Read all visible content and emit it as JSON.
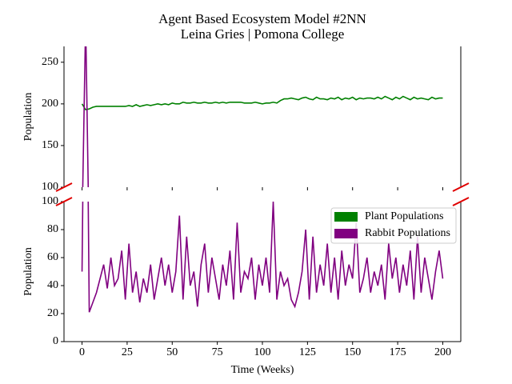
{
  "chart_data": {
    "type": "line",
    "title": "Agent Based Ecosystem Model #2NN",
    "subtitle": "Leina Gries | Pomona College",
    "x_label": "Time (Weeks)",
    "y_label": "Population",
    "xlim": [
      -10,
      210
    ],
    "xticks": [
      0,
      25,
      50,
      75,
      100,
      125,
      150,
      175,
      200
    ],
    "broken_axis": true,
    "panels": [
      {
        "ylim": [
          100,
          269
        ],
        "yticks": [
          100,
          150,
          200,
          250
        ]
      },
      {
        "ylim": [
          0,
          100
        ],
        "yticks": [
          0,
          20,
          40,
          60,
          80,
          100
        ]
      }
    ],
    "legend": "upper right",
    "x": [
      0,
      2,
      4,
      6,
      8,
      10,
      12,
      14,
      16,
      18,
      20,
      22,
      24,
      26,
      28,
      30,
      32,
      34,
      36,
      38,
      40,
      42,
      44,
      46,
      48,
      50,
      52,
      54,
      56,
      58,
      60,
      62,
      64,
      66,
      68,
      70,
      72,
      74,
      76,
      78,
      80,
      82,
      84,
      86,
      88,
      90,
      92,
      94,
      96,
      98,
      100,
      102,
      104,
      106,
      108,
      110,
      112,
      114,
      116,
      118,
      120,
      122,
      124,
      126,
      128,
      130,
      132,
      134,
      136,
      138,
      140,
      142,
      144,
      146,
      148,
      150,
      152,
      154,
      156,
      158,
      160,
      162,
      164,
      166,
      168,
      170,
      172,
      174,
      176,
      178,
      180,
      182,
      184,
      186,
      188,
      190,
      192,
      194,
      196,
      198,
      200
    ],
    "series": [
      {
        "name": "Plant Populations",
        "color": "#008000",
        "values": [
          200,
          193,
          194,
          196,
          197,
          197,
          197,
          197,
          197,
          197,
          197,
          197,
          197,
          198,
          197,
          199,
          197,
          198,
          199,
          198,
          199,
          200,
          199,
          200,
          199,
          201,
          200,
          200,
          202,
          201,
          201,
          202,
          201,
          201,
          202,
          201,
          201,
          202,
          201,
          202,
          201,
          202,
          202,
          202,
          202,
          201,
          201,
          201,
          202,
          201,
          200,
          201,
          201,
          202,
          201,
          204,
          206,
          206,
          207,
          206,
          205,
          207,
          208,
          206,
          205,
          208,
          206,
          206,
          205,
          207,
          206,
          208,
          205,
          207,
          206,
          208,
          205,
          207,
          206,
          207,
          207,
          206,
          208,
          206,
          209,
          207,
          205,
          208,
          206,
          209,
          207,
          205,
          208,
          206,
          207,
          206,
          205,
          208,
          206,
          207,
          207
        ]
      },
      {
        "name": "Rabbit Populations",
        "color": "#800080",
        "values": [
          50,
          300,
          21,
          28,
          35,
          45,
          55,
          38,
          60,
          40,
          45,
          65,
          30,
          70,
          35,
          50,
          28,
          45,
          35,
          55,
          30,
          45,
          60,
          40,
          55,
          35,
          50,
          90,
          30,
          75,
          40,
          50,
          25,
          55,
          70,
          35,
          60,
          45,
          30,
          55,
          40,
          65,
          30,
          85,
          35,
          50,
          45,
          60,
          30,
          55,
          40,
          60,
          35,
          100,
          30,
          50,
          40,
          45,
          30,
          25,
          35,
          50,
          80,
          30,
          75,
          35,
          55,
          40,
          70,
          35,
          60,
          30,
          65,
          40,
          55,
          45,
          85,
          35,
          45,
          60,
          35,
          50,
          40,
          55,
          30,
          70,
          45,
          60,
          35,
          55,
          40,
          65,
          30,
          75,
          35,
          60,
          45,
          30,
          50,
          65,
          45
        ]
      }
    ]
  }
}
